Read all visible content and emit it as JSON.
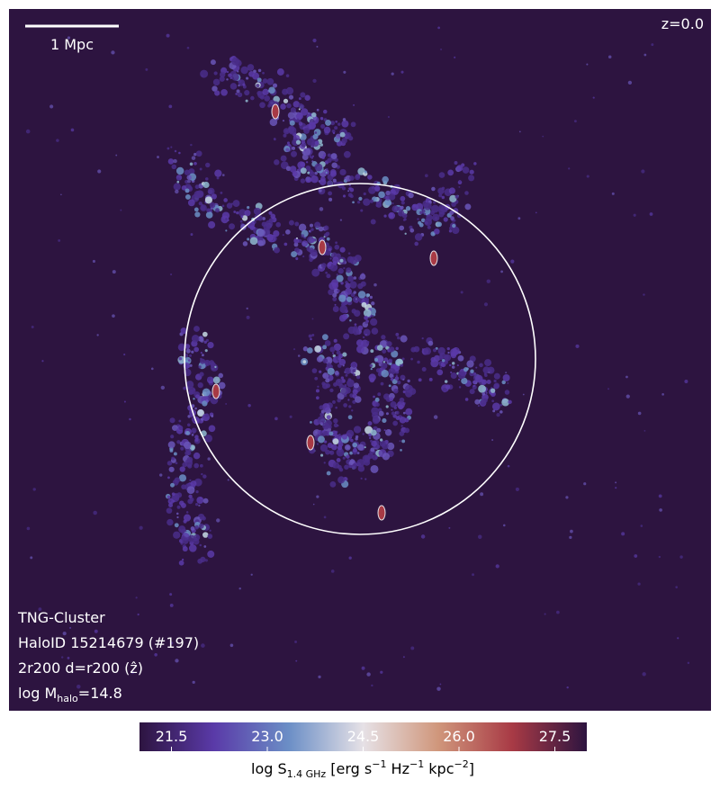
{
  "panel": {
    "scale_bar_label": "1 Mpc",
    "redshift": "z=0.0",
    "info": [
      "TNG-Cluster",
      "HaloID 15214679 (#197)",
      "2r200 d=r200 (ẑ)"
    ],
    "mass_label": {
      "prefix": "log M",
      "sub": "halo",
      "suffix": "=14.8"
    }
  },
  "colorbar": {
    "lim": [
      21,
      28
    ],
    "ticks": [
      21.5,
      {
        "value": 23,
        "label": "23.0"
      },
      24.5,
      {
        "value": 26,
        "label": "26.0"
      },
      27.5
    ],
    "label": {
      "a": "log S",
      "sub": "1.4 GHz",
      "b": " [erg s",
      "sup1": "−1",
      "c": " Hz",
      "sup2": "−1",
      "d": " kpc",
      "sup3": "−2",
      "e": "]"
    }
  }
}
